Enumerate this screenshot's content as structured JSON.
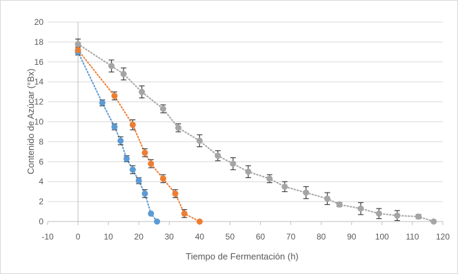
{
  "chart_data": {
    "type": "scatter",
    "xlabel": "Tiempo de Fermentación (h)",
    "ylabel": "Contenido de Azúcar (°Bx)",
    "xlim": [
      -10,
      120
    ],
    "ylim": [
      0,
      20
    ],
    "xticks": [
      -10,
      0,
      10,
      20,
      30,
      40,
      50,
      60,
      70,
      80,
      90,
      100,
      110,
      120
    ],
    "yticks": [
      0,
      2,
      4,
      6,
      8,
      10,
      12,
      14,
      16,
      18,
      20
    ],
    "grid": "horizontal",
    "legend": "none",
    "series": [
      {
        "color": "#5b9bd5",
        "trendline": "dotted",
        "x": [
          0,
          8,
          12,
          14,
          16,
          18,
          20,
          22,
          24,
          26
        ],
        "y": [
          17.0,
          11.9,
          9.5,
          8.1,
          6.3,
          5.2,
          4.1,
          2.8,
          0.8,
          0.0
        ],
        "error": [
          0.3,
          0.3,
          0.3,
          0.4,
          0.3,
          0.4,
          0.3,
          0.4,
          0.0,
          0.0
        ]
      },
      {
        "color": "#ed7d31",
        "trendline": "dotted",
        "x": [
          0,
          12,
          18,
          22,
          24,
          28,
          32,
          35,
          40
        ],
        "y": [
          17.2,
          12.6,
          9.7,
          6.9,
          5.8,
          4.3,
          2.8,
          0.8,
          0.0
        ],
        "error": [
          0.3,
          0.4,
          0.5,
          0.4,
          0.4,
          0.4,
          0.4,
          0.4,
          0.0
        ]
      },
      {
        "color": "#a5a5a5",
        "trendline": "dotted",
        "x": [
          0,
          11,
          15,
          21,
          28,
          33,
          40,
          46,
          51,
          56,
          63,
          68,
          75,
          82,
          86,
          93,
          99,
          105,
          112,
          117
        ],
        "y": [
          17.8,
          15.6,
          14.8,
          13.0,
          11.3,
          9.4,
          8.1,
          6.6,
          5.8,
          5.0,
          4.3,
          3.5,
          2.9,
          2.3,
          1.7,
          1.3,
          0.8,
          0.6,
          0.5,
          0.0
        ],
        "error": [
          0.5,
          0.6,
          0.6,
          0.6,
          0.4,
          0.4,
          0.6,
          0.5,
          0.6,
          0.6,
          0.4,
          0.5,
          0.6,
          0.6,
          0.2,
          0.6,
          0.5,
          0.5,
          0.2,
          0.0
        ]
      }
    ]
  }
}
